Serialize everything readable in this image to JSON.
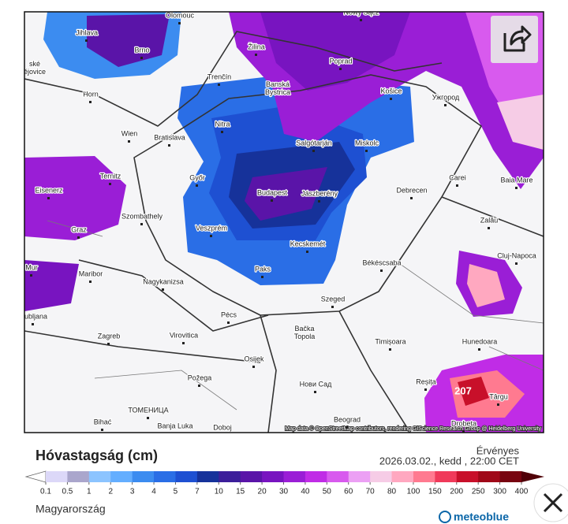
{
  "map": {
    "cities": [
      "Olomouc",
      "Nowy Sącz",
      "Jihlava",
      "Brno",
      "Žilina",
      "Poprad",
      "ské\nějovice",
      "Trenčín",
      "Banská\nBystrica",
      "Košice",
      "Ужгород",
      "Horn",
      "Nitra",
      "Wien",
      "Bratislava",
      "Salgótarján",
      "Miskolc",
      "Carei",
      "Eisenerz",
      "Ternitz",
      "Győr",
      "Budapest",
      "Jászberény",
      "Debrecen",
      "Baia Mare",
      "Szombathely",
      "Zalău",
      "Graz",
      "Veszprém",
      "Kecskemét",
      "Cluj-Napoca",
      "Paks",
      "Békéscsaba",
      "Maribor",
      "Nagykanizsa",
      "Szeged",
      "Pécs",
      "Zagreb",
      "Virovitica",
      "Bačka\nTopola",
      "Timișoara",
      "Hunedoara",
      "Osijek",
      "Požega",
      "Нови Сад",
      "Reșița",
      "Târgu",
      "ТОМЕНИЦА",
      "Bihać",
      "Banja Luka",
      "Doboj",
      "Beograd",
      "Drobeta",
      "Ljubljana",
      "Mur"
    ],
    "max_label": "207",
    "attribution": "Map data © OpenStreetMap contributors, rendering GIScience Research Group @ Heidelberg University"
  },
  "legend": {
    "title": "Hóvastagság (cm)",
    "valid_label": "Érvényes",
    "valid_time": "2026.03.02., kedd , 22:00 CET",
    "ticks": [
      0.1,
      0.5,
      1,
      2,
      3,
      4,
      5,
      7,
      10,
      15,
      20,
      30,
      40,
      50,
      60,
      70,
      80,
      100,
      150,
      200,
      250,
      300,
      400
    ],
    "colors": [
      "#dcd8f8",
      "#aaa6cc",
      "#8cc4ff",
      "#64aeff",
      "#3c8cf0",
      "#2a6ee6",
      "#1e50d2",
      "#16329a",
      "#3c1e9a",
      "#5a14a8",
      "#7814c0",
      "#9a1ed6",
      "#c02ce6",
      "#d85aee",
      "#eca0f4",
      "#f6cce6",
      "#ffa8c0",
      "#ff7a90",
      "#f03a5a",
      "#c8102a",
      "#a00818",
      "#780410"
    ],
    "under_color": "#ffffff",
    "over_color": "#500008",
    "region": "Magyarország",
    "brand": "meteoblue"
  }
}
